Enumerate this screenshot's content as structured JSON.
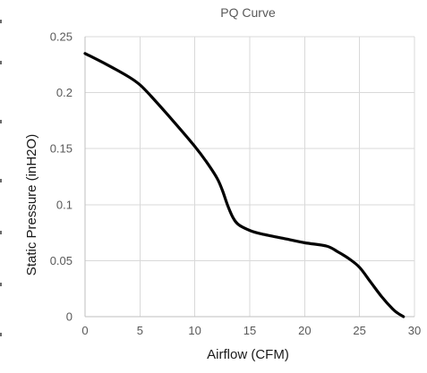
{
  "chart_data": {
    "type": "line",
    "title": "PQ Curve",
    "xlabel": "Airflow (CFM)",
    "ylabel": "Static Pressure (inH2O)",
    "xlim": [
      0,
      30
    ],
    "ylim": [
      0,
      0.25
    ],
    "xticks": [
      0,
      5,
      10,
      15,
      20,
      25,
      30
    ],
    "yticks": [
      0,
      0.05,
      0.1,
      0.15,
      0.2,
      0.25
    ],
    "xtick_labels": [
      "0",
      "5",
      "10",
      "15",
      "20",
      "25",
      "30"
    ],
    "ytick_labels": [
      "0",
      "0.05",
      "0.1",
      "0.15",
      "0.2",
      "0.25"
    ],
    "grid": true,
    "legend": "none",
    "series_color": "#000000",
    "grid_color": "#d9d9d9",
    "series": [
      {
        "x": [
          0,
          2,
          4,
          5,
          6,
          8,
          10,
          11,
          12,
          12.5,
          13,
          13.5,
          14,
          15,
          16,
          18,
          20,
          22,
          23,
          24,
          25,
          26,
          27,
          28,
          28.5,
          29
        ],
        "y": [
          0.235,
          0.225,
          0.214,
          0.207,
          0.197,
          0.175,
          0.152,
          0.139,
          0.124,
          0.113,
          0.099,
          0.088,
          0.082,
          0.077,
          0.074,
          0.07,
          0.066,
          0.063,
          0.058,
          0.052,
          0.044,
          0.031,
          0.018,
          0.007,
          0.003,
          0
        ]
      }
    ]
  }
}
